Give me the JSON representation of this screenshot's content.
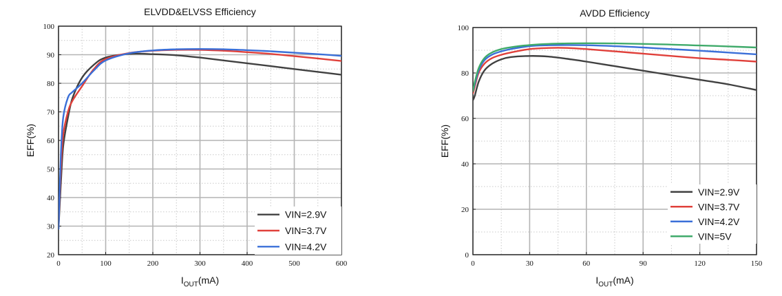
{
  "chart_data": [
    {
      "type": "line",
      "title": "ELVDD&ELVSS Efficiency",
      "xlabel_main": "I",
      "xlabel_sub": "OUT",
      "xlabel_unit": "(mA)",
      "ylabel": "EFF(%)",
      "xlim": [
        0,
        600
      ],
      "ylim": [
        20,
        100
      ],
      "xticks": [
        0,
        100,
        200,
        300,
        400,
        500,
        600
      ],
      "yticks": [
        20,
        30,
        40,
        50,
        60,
        70,
        80,
        90,
        100
      ],
      "grid": true,
      "legend_position": "bottom-right",
      "series": [
        {
          "name": "VIN=2.9V",
          "color": "#404040",
          "x": [
            0,
            5,
            10,
            20,
            30,
            50,
            75,
            100,
            150,
            200,
            250,
            300,
            350,
            400,
            450,
            500,
            550,
            600
          ],
          "y": [
            29,
            45,
            58,
            68,
            75,
            82,
            86.5,
            89,
            90.3,
            90.2,
            89.8,
            89,
            88,
            87,
            86,
            85,
            84,
            83
          ]
        },
        {
          "name": "VIN=3.7V",
          "color": "#e0403a",
          "x": [
            0,
            5,
            10,
            20,
            30,
            50,
            75,
            100,
            150,
            200,
            250,
            300,
            350,
            400,
            450,
            500,
            550,
            600
          ],
          "y": [
            30,
            50,
            62,
            70,
            74,
            79,
            85,
            88.5,
            90.6,
            91.4,
            91.7,
            91.7,
            91.4,
            90.9,
            90.3,
            89.5,
            88.7,
            87.8
          ]
        },
        {
          "name": "VIN=4.2V",
          "color": "#3a6fd8",
          "x": [
            0,
            5,
            10,
            20,
            30,
            50,
            75,
            100,
            150,
            200,
            250,
            300,
            350,
            400,
            450,
            500,
            550,
            600
          ],
          "y": [
            29,
            55,
            68,
            75,
            77,
            80,
            84.5,
            88,
            90.5,
            91.5,
            91.9,
            92,
            91.9,
            91.6,
            91.2,
            90.7,
            90.2,
            89.6
          ]
        }
      ]
    },
    {
      "type": "line",
      "title": "AVDD Efficiency",
      "xlabel_main": "I",
      "xlabel_sub": "OUT",
      "xlabel_unit": "(mA)",
      "ylabel": "EFF(%)",
      "xlim": [
        0,
        150
      ],
      "ylim": [
        0,
        100
      ],
      "xticks": [
        0,
        30,
        60,
        90,
        120,
        150
      ],
      "yticks": [
        0,
        20,
        40,
        60,
        80,
        100
      ],
      "grid": true,
      "legend_position": "bottom-right",
      "series": [
        {
          "name": "VIN=2.9V",
          "color": "#404040",
          "x": [
            0,
            1,
            3,
            6,
            10,
            15,
            20,
            30,
            40,
            50,
            60,
            75,
            90,
            105,
            120,
            135,
            150
          ],
          "y": [
            68,
            70,
            76,
            81,
            84,
            86,
            87,
            87.5,
            87.2,
            86.2,
            85,
            83,
            81,
            79,
            77,
            75,
            72.5
          ]
        },
        {
          "name": "VIN=3.7V",
          "color": "#e0403a",
          "x": [
            0,
            1,
            3,
            6,
            10,
            15,
            20,
            30,
            40,
            50,
            60,
            75,
            90,
            105,
            120,
            135,
            150
          ],
          "y": [
            71,
            74,
            80,
            84,
            86.5,
            88,
            89,
            90.5,
            91,
            91,
            90.5,
            89.5,
            88.5,
            87.5,
            86.5,
            85.8,
            85
          ]
        },
        {
          "name": "VIN=4.2V",
          "color": "#3a6fd8",
          "x": [
            0,
            1,
            3,
            6,
            10,
            15,
            20,
            30,
            40,
            50,
            60,
            75,
            90,
            105,
            120,
            135,
            150
          ],
          "y": [
            72,
            75,
            81,
            85.5,
            88,
            89.5,
            90.5,
            91.8,
            92.2,
            92.3,
            92.2,
            91.8,
            91.2,
            90.5,
            89.8,
            89,
            88.2
          ]
        },
        {
          "name": "VIN=5V",
          "color": "#3faa6a",
          "x": [
            0,
            1,
            3,
            6,
            10,
            15,
            20,
            30,
            40,
            50,
            60,
            75,
            90,
            105,
            120,
            135,
            150
          ],
          "y": [
            72,
            76,
            82,
            86.5,
            89,
            90.5,
            91.3,
            92.3,
            92.8,
            93,
            93.1,
            93,
            92.8,
            92.5,
            92.1,
            91.7,
            91.2
          ]
        }
      ]
    }
  ]
}
